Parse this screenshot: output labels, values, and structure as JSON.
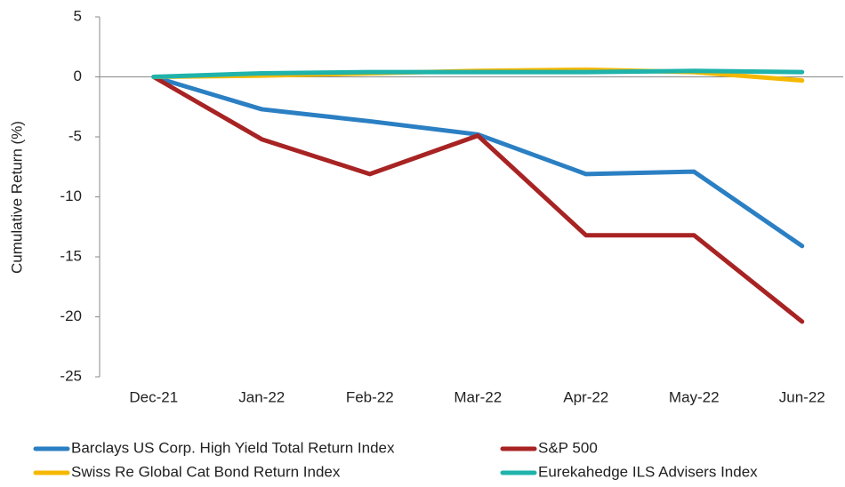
{
  "chart_data": {
    "type": "line",
    "y_label": "Cumulative Return (%)",
    "categories": [
      "Dec-21",
      "Jan-22",
      "Feb-22",
      "Mar-22",
      "Apr-22",
      "May-22",
      "Jun-22"
    ],
    "series": [
      {
        "name": "Barclays US Corp. High Yield Total Return Index",
        "color": "#2b7fc3",
        "values": [
          0,
          -2.7,
          -3.7,
          -4.8,
          -8.1,
          -7.9,
          -14.1
        ]
      },
      {
        "name": "S&P 500",
        "color": "#a82323",
        "values": [
          0,
          -5.2,
          -8.1,
          -4.9,
          -13.2,
          -13.2,
          -20.4
        ]
      },
      {
        "name": "Swiss Re Global Cat Bond Return Index",
        "color": "#f5b800",
        "values": [
          0,
          0.1,
          0.3,
          0.5,
          0.6,
          0.4,
          -0.3
        ]
      },
      {
        "name": "Eurekahedge ILS Advisers Index",
        "color": "#1fb3ab",
        "values": [
          0,
          0.3,
          0.4,
          0.4,
          0.4,
          0.5,
          0.4
        ]
      }
    ],
    "ylim": [
      -25,
      5
    ],
    "yticks": [
      -25,
      -20,
      -15,
      -10,
      -5,
      0,
      5
    ],
    "grid": false
  }
}
